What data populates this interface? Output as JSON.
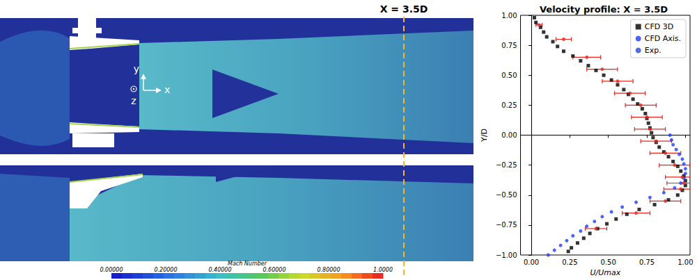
{
  "chart_data": {
    "type": "scatter",
    "title": "Velocity profile: X = 3.5D",
    "x_label": "U/Umax",
    "y_label": "Y/D",
    "xlim": [
      -0.07,
      1.03
    ],
    "ylim": [
      -1,
      1
    ],
    "xticks": [
      {
        "value": 0,
        "label": "0.00"
      },
      {
        "value": 0.25,
        "label": "0.25"
      },
      {
        "value": 0.5,
        "label": "0.50"
      },
      {
        "value": 0.75,
        "label": "0.75"
      },
      {
        "value": 1,
        "label": "1.00"
      }
    ],
    "yticks": [
      {
        "value": -1,
        "label": "−1.00"
      },
      {
        "value": -0.75,
        "label": "−0.75"
      },
      {
        "value": -0.5,
        "label": "−0.50"
      },
      {
        "value": -0.25,
        "label": "−0.25"
      },
      {
        "value": 0,
        "label": "0.00"
      },
      {
        "value": 0.25,
        "label": "0.25"
      },
      {
        "value": 0.5,
        "label": "0.50"
      },
      {
        "value": 0.75,
        "label": "0.75"
      },
      {
        "value": 1,
        "label": "1.00"
      }
    ],
    "grid": false,
    "legend": "upper right",
    "series": [
      {
        "name": "CFD 3D",
        "color": "#000000",
        "marker": "square",
        "x": [
          0.02,
          0.03,
          0.06,
          0.08,
          0.1,
          0.14,
          0.17,
          0.21,
          0.27,
          0.32,
          0.37,
          0.42,
          0.47,
          0.52,
          0.56,
          0.6,
          0.63,
          0.66,
          0.69,
          0.72,
          0.74,
          0.75,
          0.76,
          0.77,
          0.78,
          0.79,
          0.81,
          0.83,
          0.86,
          0.89,
          0.92,
          0.95,
          0.97,
          0.99,
          1.0,
          1.0,
          0.98,
          0.95,
          0.89,
          0.8,
          0.7,
          0.62,
          0.55,
          0.49,
          0.43,
          0.38,
          0.34,
          0.3,
          0.26,
          0.24
        ],
        "y": [
          0.98,
          0.94,
          0.9,
          0.86,
          0.82,
          0.78,
          0.74,
          0.7,
          0.66,
          0.62,
          0.58,
          0.54,
          0.5,
          0.46,
          0.42,
          0.38,
          0.34,
          0.3,
          0.26,
          0.22,
          0.18,
          0.14,
          0.1,
          0.06,
          0.02,
          -0.02,
          -0.06,
          -0.1,
          -0.14,
          -0.18,
          -0.22,
          -0.26,
          -0.3,
          -0.34,
          -0.38,
          -0.42,
          -0.46,
          -0.5,
          -0.54,
          -0.58,
          -0.62,
          -0.66,
          -0.7,
          -0.74,
          -0.78,
          -0.82,
          -0.86,
          -0.9,
          -0.94,
          -0.97
        ]
      },
      {
        "name": "CFD Axis.",
        "color": "#1f3dff",
        "marker": "circle",
        "x": [
          0.9,
          0.91,
          0.92,
          0.94,
          0.96,
          0.98,
          0.99,
          1.0,
          1.0,
          0.99,
          0.97,
          0.93,
          0.86,
          0.77,
          0.68,
          0.59,
          0.52,
          0.46,
          0.41,
          0.36,
          0.32,
          0.27,
          0.23,
          0.19,
          0.15,
          0.11
        ],
        "y": [
          0.0,
          -0.04,
          -0.08,
          -0.12,
          -0.16,
          -0.2,
          -0.24,
          -0.28,
          -0.32,
          -0.36,
          -0.4,
          -0.44,
          -0.48,
          -0.52,
          -0.56,
          -0.6,
          -0.64,
          -0.68,
          -0.72,
          -0.76,
          -0.8,
          -0.84,
          -0.88,
          -0.92,
          -0.96,
          -1.0
        ]
      },
      {
        "name": "Exp.",
        "color": "#e8251f",
        "marker": "circle",
        "x": [
          0.05,
          0.21,
          0.36,
          0.46,
          0.56,
          0.64,
          0.71,
          0.75,
          0.77,
          0.81,
          0.87,
          0.93,
          0.98,
          0.99,
          0.97,
          0.87,
          0.68,
          0.42
        ],
        "y": [
          0.92,
          0.8,
          0.65,
          0.55,
          0.45,
          0.35,
          0.25,
          0.15,
          0.05,
          -0.05,
          -0.15,
          -0.25,
          -0.35,
          -0.4,
          -0.45,
          -0.55,
          -0.65,
          -0.78
        ],
        "xerr": [
          0.02,
          0.05,
          0.09,
          0.1,
          0.1,
          0.1,
          0.1,
          0.1,
          0.1,
          0.1,
          0.1,
          0.1,
          0.11,
          0.11,
          0.11,
          0.1,
          0.09,
          0.07
        ]
      }
    ]
  },
  "flow_field": {
    "marker_label": "X = 3.5D",
    "axes": {
      "y": "y",
      "x": "x",
      "z": "z"
    },
    "colorbar": {
      "title": "Mach Number",
      "range": [
        0,
        1
      ],
      "ticks": [
        {
          "value": 0,
          "label": "0.00000"
        },
        {
          "value": 0.2,
          "label": "0.20000"
        },
        {
          "value": 0.4,
          "label": "0.40000"
        },
        {
          "value": 0.6,
          "label": "0.60000"
        },
        {
          "value": 0.8,
          "label": "0.80000"
        },
        {
          "value": 1,
          "label": "1.0000"
        }
      ]
    }
  }
}
